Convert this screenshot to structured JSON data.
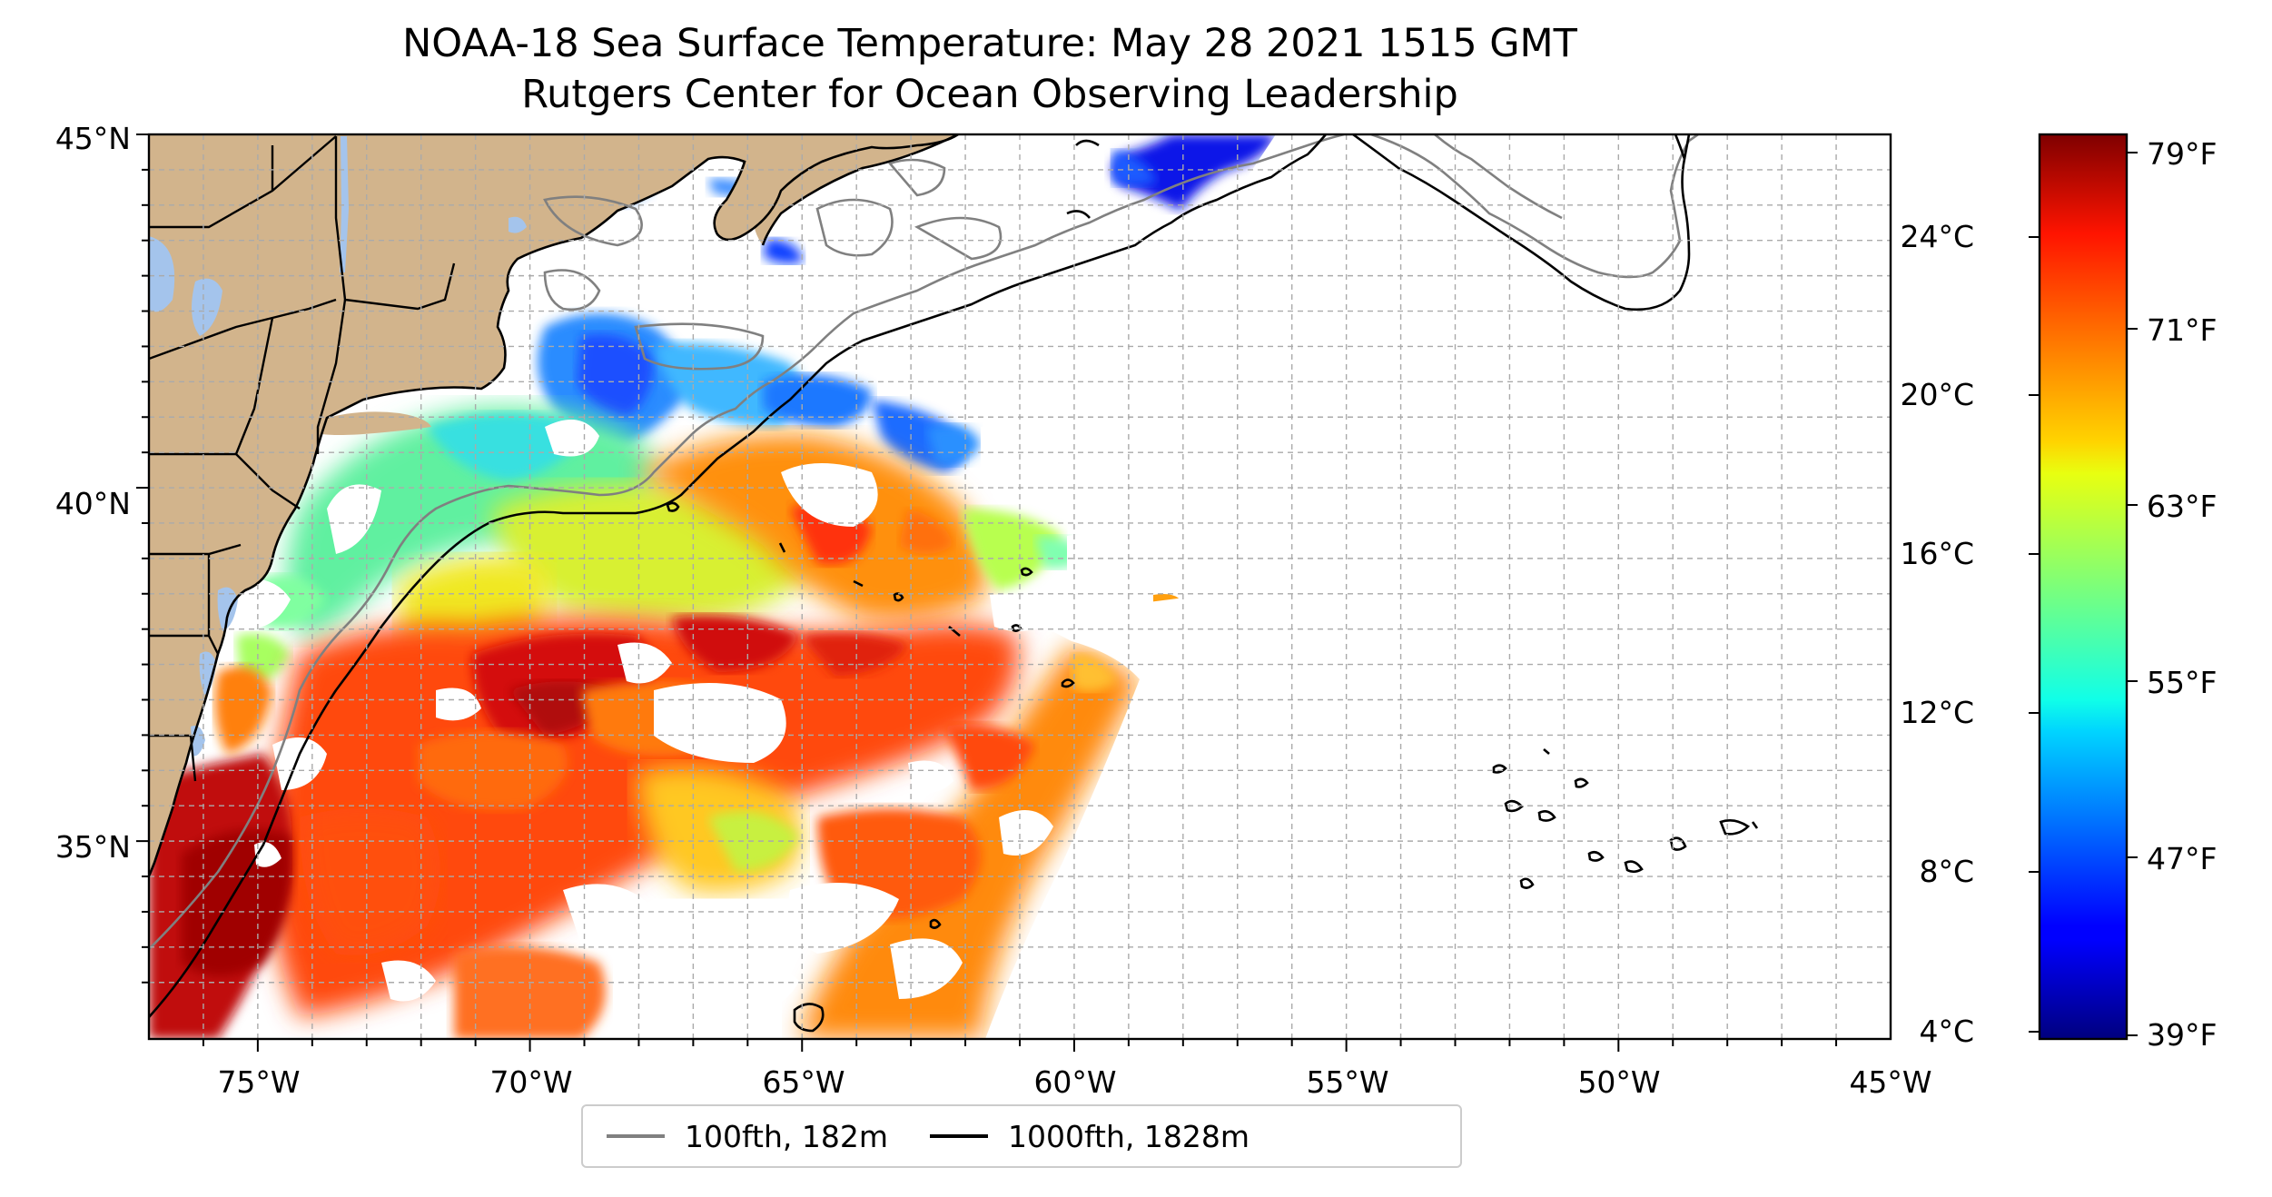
{
  "title": "NOAA-18 Sea Surface Temperature: May 28 2021 1515 GMT",
  "subtitle": "Rutgers Center for Ocean Observing Leadership",
  "map": {
    "extent": {
      "lon": [
        -77,
        -45
      ],
      "lat": [
        32.2,
        45
      ]
    },
    "x_ticks": [
      "75°W",
      "70°W",
      "65°W",
      "60°W",
      "55°W",
      "50°W",
      "45°W"
    ],
    "y_ticks": [
      "45°N",
      "40°N",
      "35°N"
    ],
    "grid": true,
    "land_color": "#d2b48c",
    "water_color": "#a4c4ec",
    "ocean_color": "#ffffff",
    "no_data_color": "#ffffff"
  },
  "colorbar": {
    "colormap": "jet",
    "celsius_ticks": [
      "24°C",
      "20°C",
      "16°C",
      "12°C",
      "8°C",
      "4°C"
    ],
    "fahrenheit_ticks": [
      "79°F",
      "71°F",
      "63°F",
      "55°F",
      "47°F",
      "39°F"
    ]
  },
  "legend": {
    "items": [
      {
        "label": "100fth, 182m",
        "color": "#808080"
      },
      {
        "label": "1000fth, 1828m",
        "color": "#000000"
      }
    ]
  }
}
